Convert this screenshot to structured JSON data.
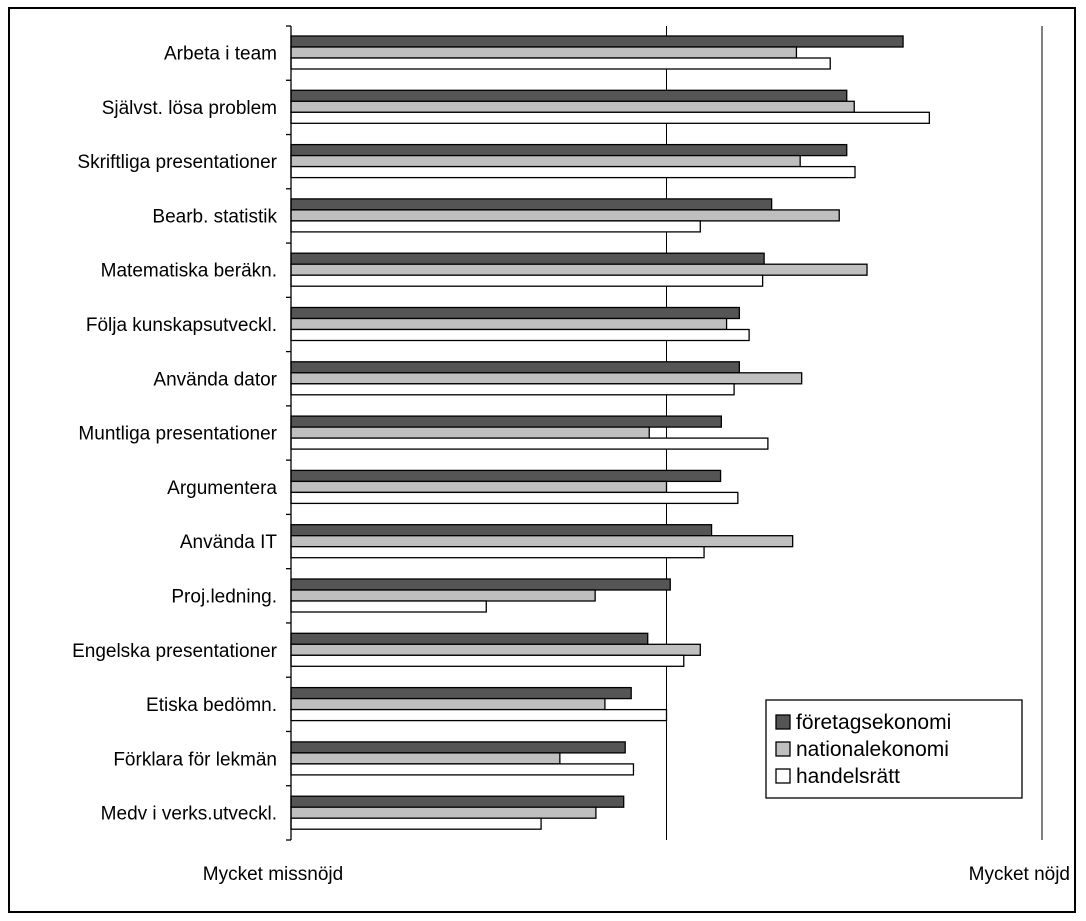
{
  "chart_data": {
    "type": "bar",
    "orientation": "horizontal",
    "categories": [
      "Arbeta i team",
      "Självst. lösa problem",
      "Skriftliga presentationer",
      "Bearb. statistik",
      "Matematiska beräkn.",
      "Följa kunskapsutveckl.",
      "Använda dator",
      "Muntliga presentationer",
      "Argumentera",
      "Använda IT",
      "Proj.ledning.",
      "Engelska presentationer",
      "Etiska bedömn.",
      "Förklara för lekmän",
      "Medv i verks.utveckl."
    ],
    "series": [
      {
        "name": "företagsekonomi",
        "color": "#555555",
        "values": [
          0.815,
          0.74,
          0.74,
          0.64,
          0.63,
          0.597,
          0.597,
          0.573,
          0.572,
          0.56,
          0.505,
          0.475,
          0.453,
          0.445,
          0.443
        ]
      },
      {
        "name": "nationalekonomi",
        "color": "#bfbfbf",
        "values": [
          0.673,
          0.75,
          0.678,
          0.73,
          0.767,
          0.58,
          0.68,
          0.477,
          0.5,
          0.668,
          0.405,
          0.545,
          0.418,
          0.358,
          0.406
        ]
      },
      {
        "name": "handelsrätt",
        "color": "#ffffff",
        "values": [
          0.718,
          0.85,
          0.751,
          0.545,
          0.628,
          0.61,
          0.59,
          0.635,
          0.595,
          0.55,
          0.26,
          0.523,
          0.5,
          0.456,
          0.333
        ]
      }
    ],
    "xlim": [
      0,
      1
    ],
    "x_tick_labels": [
      "Mycket missnöjd",
      "Mycket nöjd"
    ],
    "xlabel": "",
    "ylabel": "",
    "title": "",
    "grid": "vertical gridline at midpoint",
    "legend_position": "bottom-right"
  }
}
